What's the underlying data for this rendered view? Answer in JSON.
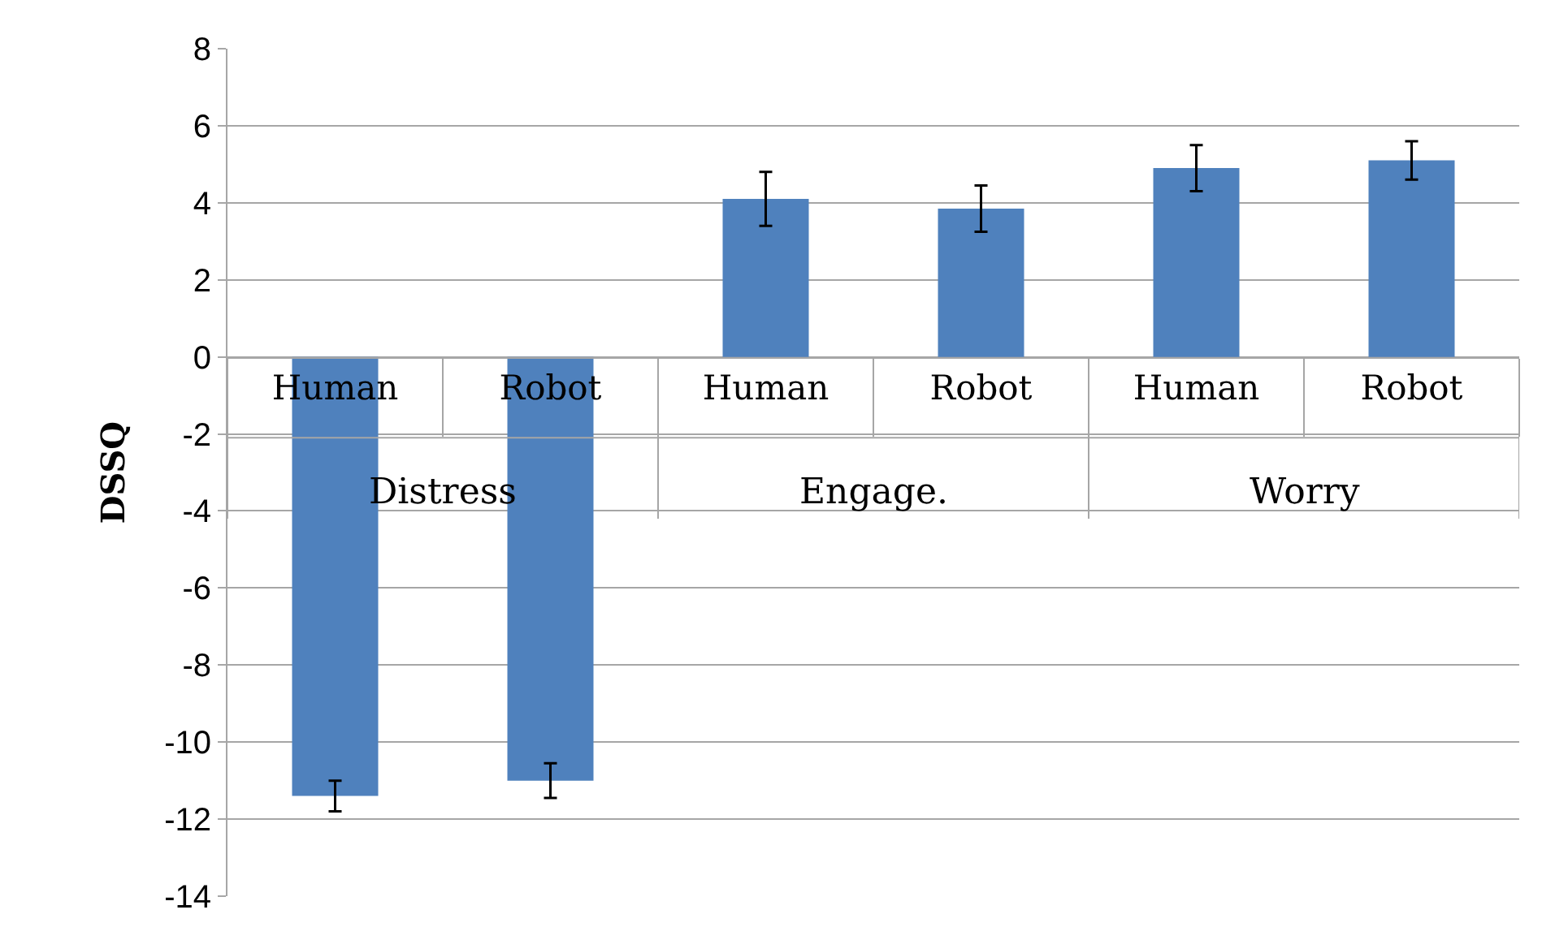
{
  "chart_data": {
    "type": "bar",
    "ylabel": "DSSQ",
    "categories": [
      "Human",
      "Robot",
      "Human",
      "Robot",
      "Human",
      "Robot"
    ],
    "values": [
      -11.4,
      -11.0,
      4.1,
      3.85,
      4.9,
      5.1
    ],
    "errors": [
      0.4,
      0.45,
      0.7,
      0.6,
      0.6,
      0.5
    ],
    "color": "#4f81bd",
    "annotations": [
      "Distress",
      "Engage.",
      "Worry"
    ],
    "ylim": [
      -14,
      8
    ],
    "yticks": [
      -14,
      -12,
      -10,
      -8,
      -6,
      -4,
      -2,
      0,
      2,
      4,
      6,
      8
    ],
    "grid": "y"
  }
}
